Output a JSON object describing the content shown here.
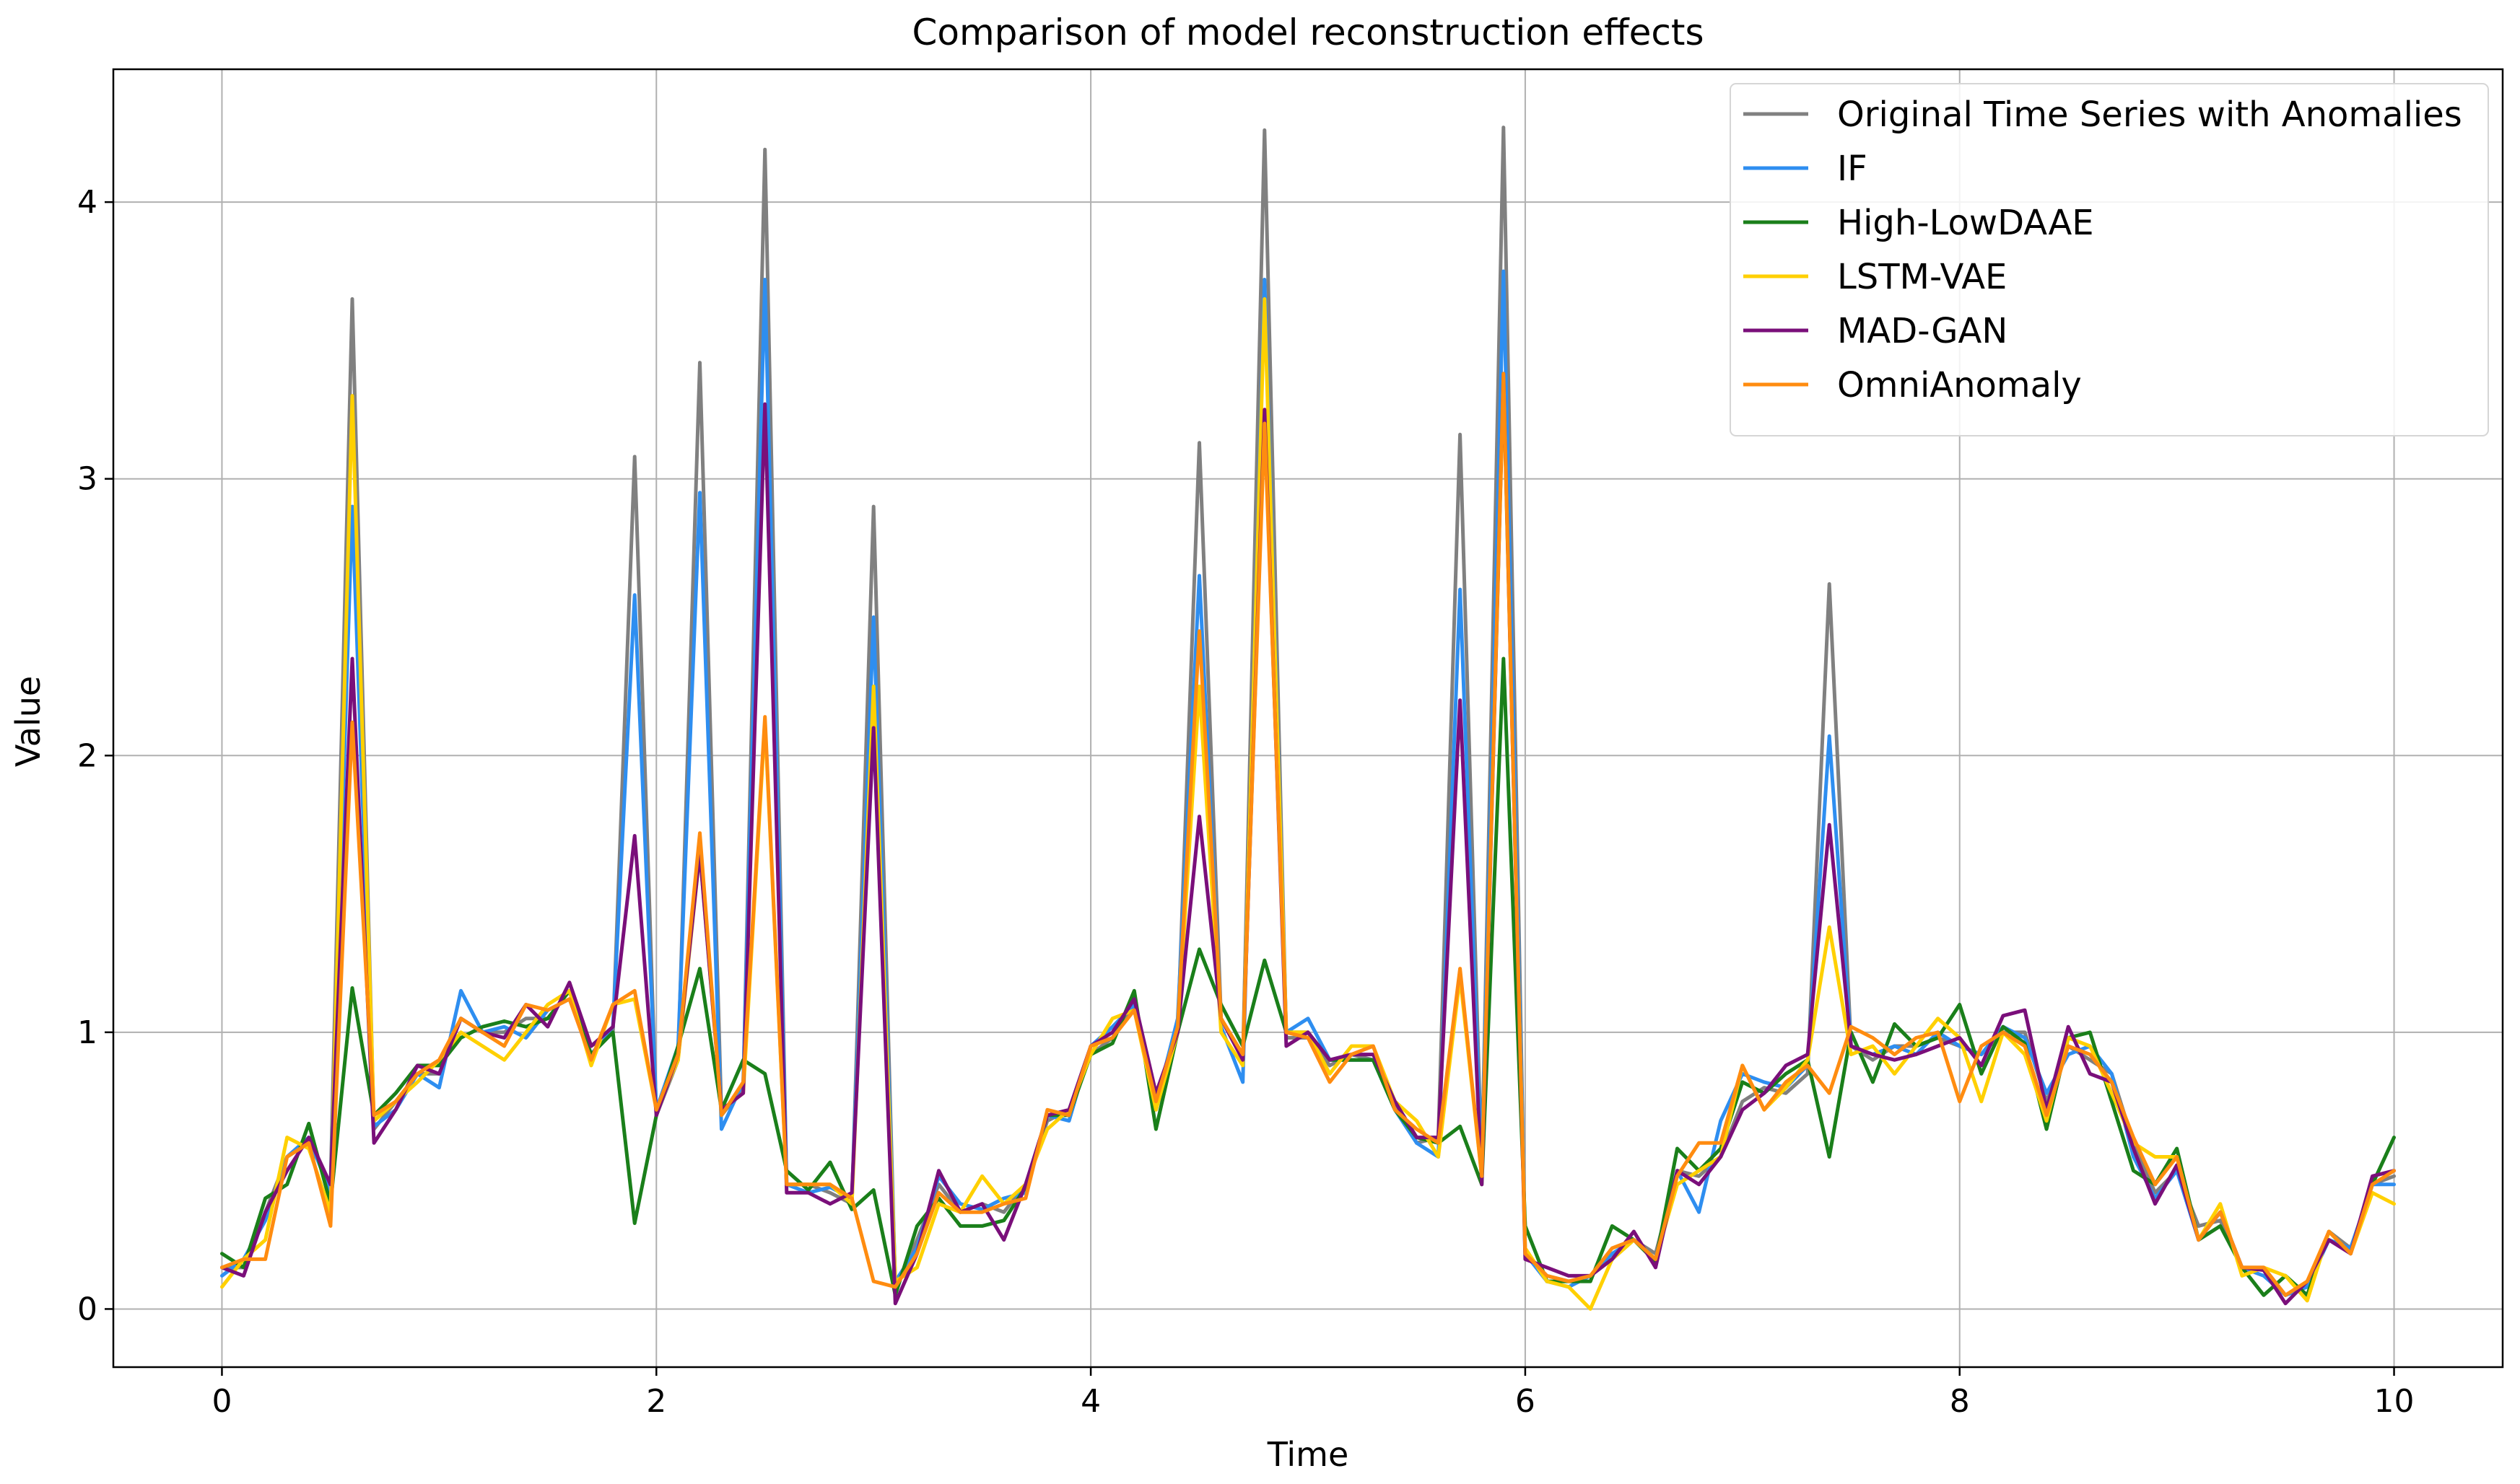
{
  "chart_data": {
    "type": "line",
    "title": "Comparison of model reconstruction effects",
    "xlabel": "Time",
    "ylabel": "Value",
    "xlim": [
      -0.5,
      10.5
    ],
    "ylim": [
      -0.21,
      4.48
    ],
    "xticks": [
      0,
      2,
      4,
      6,
      8,
      10
    ],
    "yticks": [
      0,
      1,
      2,
      3,
      4
    ],
    "grid": true,
    "legend_position": "top-right",
    "series": [
      {
        "name": "Original Time Series with Anomalies",
        "color": "#808080",
        "x": [
          0,
          0.1,
          0.2,
          0.3,
          0.4,
          0.5,
          0.6,
          0.7,
          0.8,
          0.9,
          1.0,
          1.1,
          1.2,
          1.3,
          1.4,
          1.5,
          1.6,
          1.7,
          1.8,
          1.9,
          2.0,
          2.1,
          2.2,
          2.3,
          2.4,
          2.5,
          2.6,
          2.7,
          2.8,
          2.9,
          3.0,
          3.1,
          3.2,
          3.3,
          3.4,
          3.5,
          3.6,
          3.7,
          3.8,
          3.9,
          4.0,
          4.1,
          4.2,
          4.3,
          4.4,
          4.5,
          4.6,
          4.7,
          4.8,
          4.9,
          5.0,
          5.1,
          5.2,
          5.3,
          5.4,
          5.5,
          5.6,
          5.7,
          5.8,
          5.9,
          6.0,
          6.1,
          6.2,
          6.3,
          6.4,
          6.5,
          6.6,
          6.7,
          6.8,
          6.9,
          7.0,
          7.1,
          7.2,
          7.3,
          7.4,
          7.5,
          7.6,
          7.7,
          7.8,
          7.9,
          8.0,
          8.1,
          8.2,
          8.3,
          8.4,
          8.5,
          8.6,
          8.7,
          8.8,
          8.9,
          9.0,
          9.1,
          9.2,
          9.3,
          9.4,
          9.5,
          9.6,
          9.7,
          9.8,
          9.9,
          10.0
        ],
        "y": [
          0.15,
          0.15,
          0.35,
          0.55,
          0.6,
          0.45,
          3.65,
          0.65,
          0.75,
          0.85,
          0.85,
          1.05,
          1.0,
          1.0,
          1.05,
          1.05,
          1.15,
          0.95,
          1.0,
          3.08,
          0.7,
          0.9,
          3.42,
          0.7,
          0.8,
          4.19,
          0.45,
          0.45,
          0.42,
          0.38,
          2.9,
          0.08,
          0.25,
          0.45,
          0.35,
          0.38,
          0.35,
          0.45,
          0.68,
          0.72,
          0.92,
          0.98,
          1.1,
          0.72,
          1.0,
          3.13,
          1.05,
          0.9,
          4.26,
          0.98,
          0.98,
          0.88,
          0.92,
          0.9,
          0.75,
          0.6,
          0.62,
          3.16,
          0.5,
          4.27,
          0.2,
          0.12,
          0.1,
          0.12,
          0.18,
          0.25,
          0.2,
          0.5,
          0.48,
          0.55,
          0.75,
          0.8,
          0.78,
          0.85,
          2.62,
          0.95,
          0.9,
          0.95,
          0.95,
          0.98,
          0.95,
          0.92,
          1.0,
          1.0,
          0.75,
          0.95,
          0.9,
          0.85,
          0.6,
          0.42,
          0.5,
          0.3,
          0.32,
          0.15,
          0.15,
          0.05,
          0.08,
          0.28,
          0.22,
          0.45,
          0.48
        ]
      },
      {
        "name": "IF",
        "color": "#2e8ef0",
        "x": [
          0,
          0.1,
          0.2,
          0.3,
          0.4,
          0.5,
          0.6,
          0.7,
          0.8,
          0.9,
          1.0,
          1.1,
          1.2,
          1.3,
          1.4,
          1.5,
          1.6,
          1.7,
          1.8,
          1.9,
          2.0,
          2.1,
          2.2,
          2.3,
          2.4,
          2.5,
          2.6,
          2.7,
          2.8,
          2.9,
          3.0,
          3.1,
          3.2,
          3.3,
          3.4,
          3.5,
          3.6,
          3.7,
          3.8,
          3.9,
          4.0,
          4.1,
          4.2,
          4.3,
          4.4,
          4.5,
          4.6,
          4.7,
          4.8,
          4.9,
          5.0,
          5.1,
          5.2,
          5.3,
          5.4,
          5.5,
          5.6,
          5.7,
          5.8,
          5.9,
          6.0,
          6.1,
          6.2,
          6.3,
          6.4,
          6.5,
          6.6,
          6.7,
          6.8,
          6.9,
          7.0,
          7.1,
          7.2,
          7.3,
          7.4,
          7.5,
          7.6,
          7.7,
          7.8,
          7.9,
          8.0,
          8.1,
          8.2,
          8.3,
          8.4,
          8.5,
          8.6,
          8.7,
          8.8,
          8.9,
          9.0,
          9.1,
          9.2,
          9.3,
          9.4,
          9.5,
          9.6,
          9.7,
          9.8,
          9.9,
          10.0
        ],
        "y": [
          0.12,
          0.18,
          0.32,
          0.55,
          0.62,
          0.42,
          2.9,
          0.66,
          0.72,
          0.85,
          0.8,
          1.15,
          1.0,
          1.02,
          0.98,
          1.08,
          1.12,
          0.92,
          1.02,
          2.58,
          0.72,
          0.95,
          2.95,
          0.65,
          0.82,
          3.72,
          0.45,
          0.42,
          0.44,
          0.4,
          2.5,
          0.1,
          0.22,
          0.48,
          0.38,
          0.36,
          0.4,
          0.42,
          0.7,
          0.68,
          0.95,
          1.02,
          1.1,
          0.74,
          1.05,
          2.65,
          1.02,
          0.82,
          3.72,
          1.0,
          1.05,
          0.9,
          0.9,
          0.9,
          0.72,
          0.6,
          0.55,
          2.6,
          0.5,
          3.75,
          0.2,
          0.1,
          0.08,
          0.12,
          0.2,
          0.25,
          0.18,
          0.5,
          0.35,
          0.68,
          0.85,
          0.82,
          0.8,
          0.88,
          2.07,
          0.95,
          0.92,
          0.95,
          0.92,
          1.0,
          0.95,
          0.92,
          1.02,
          0.98,
          0.78,
          0.92,
          0.95,
          0.85,
          0.55,
          0.4,
          0.5,
          0.25,
          0.35,
          0.15,
          0.12,
          0.05,
          0.08,
          0.25,
          0.22,
          0.45,
          0.45
        ]
      },
      {
        "name": "High-LowDAAE",
        "color": "#1a7f1a",
        "x": [
          0,
          0.1,
          0.2,
          0.3,
          0.4,
          0.5,
          0.6,
          0.7,
          0.8,
          0.9,
          1.0,
          1.1,
          1.2,
          1.3,
          1.4,
          1.5,
          1.6,
          1.7,
          1.8,
          1.9,
          2.0,
          2.1,
          2.2,
          2.3,
          2.4,
          2.5,
          2.6,
          2.7,
          2.8,
          2.9,
          3.0,
          3.1,
          3.2,
          3.3,
          3.4,
          3.5,
          3.6,
          3.7,
          3.8,
          3.9,
          4.0,
          4.1,
          4.2,
          4.3,
          4.4,
          4.5,
          4.6,
          4.7,
          4.8,
          4.9,
          5.0,
          5.1,
          5.2,
          5.3,
          5.4,
          5.5,
          5.6,
          5.7,
          5.8,
          5.9,
          6.0,
          6.1,
          6.2,
          6.3,
          6.4,
          6.5,
          6.6,
          6.7,
          6.8,
          6.9,
          7.0,
          7.1,
          7.2,
          7.3,
          7.4,
          7.5,
          7.6,
          7.7,
          7.8,
          7.9,
          8.0,
          8.1,
          8.2,
          8.3,
          8.4,
          8.5,
          8.6,
          8.7,
          8.8,
          8.9,
          9.0,
          9.1,
          9.2,
          9.3,
          9.4,
          9.5,
          9.6,
          9.7,
          9.8,
          9.9,
          10.0
        ],
        "y": [
          0.2,
          0.15,
          0.4,
          0.45,
          0.67,
          0.38,
          1.16,
          0.7,
          0.78,
          0.88,
          0.88,
          0.98,
          1.02,
          1.04,
          1.02,
          1.05,
          1.15,
          0.92,
          1.0,
          0.31,
          0.7,
          0.95,
          1.23,
          0.72,
          0.9,
          0.85,
          0.5,
          0.43,
          0.53,
          0.36,
          0.43,
          0.05,
          0.3,
          0.4,
          0.3,
          0.3,
          0.32,
          0.44,
          0.7,
          0.7,
          0.92,
          0.96,
          1.15,
          0.65,
          1.0,
          1.3,
          1.1,
          0.95,
          1.26,
          1.0,
          1.0,
          0.9,
          0.9,
          0.9,
          0.72,
          0.62,
          0.6,
          0.66,
          0.45,
          2.35,
          0.3,
          0.1,
          0.1,
          0.1,
          0.3,
          0.25,
          0.17,
          0.58,
          0.5,
          0.58,
          0.82,
          0.78,
          0.85,
          0.9,
          0.55,
          1.0,
          0.82,
          1.03,
          0.95,
          0.98,
          1.1,
          0.85,
          1.02,
          0.96,
          0.65,
          0.98,
          1.0,
          0.75,
          0.5,
          0.45,
          0.58,
          0.25,
          0.3,
          0.15,
          0.05,
          0.12,
          0.05,
          0.28,
          0.2,
          0.45,
          0.62
        ]
      },
      {
        "name": "LSTM-VAE",
        "color": "#ffd000",
        "x": [
          0,
          0.1,
          0.2,
          0.3,
          0.4,
          0.5,
          0.6,
          0.7,
          0.8,
          0.9,
          1.0,
          1.1,
          1.2,
          1.3,
          1.4,
          1.5,
          1.6,
          1.7,
          1.8,
          1.9,
          2.0,
          2.1,
          2.2,
          2.3,
          2.4,
          2.5,
          2.6,
          2.7,
          2.8,
          2.9,
          3.0,
          3.1,
          3.2,
          3.3,
          3.4,
          3.5,
          3.6,
          3.7,
          3.8,
          3.9,
          4.0,
          4.1,
          4.2,
          4.3,
          4.4,
          4.5,
          4.6,
          4.7,
          4.8,
          4.9,
          5.0,
          5.1,
          5.2,
          5.3,
          5.4,
          5.5,
          5.6,
          5.7,
          5.8,
          5.9,
          6.0,
          6.1,
          6.2,
          6.3,
          6.4,
          6.5,
          6.6,
          6.7,
          6.8,
          6.9,
          7.0,
          7.1,
          7.2,
          7.3,
          7.4,
          7.5,
          7.6,
          7.7,
          7.8,
          7.9,
          8.0,
          8.1,
          8.2,
          8.3,
          8.4,
          8.5,
          8.6,
          8.7,
          8.8,
          8.9,
          9.0,
          9.1,
          9.2,
          9.3,
          9.4,
          9.5,
          9.6,
          9.7,
          9.8,
          9.9,
          10.0
        ],
        "y": [
          0.08,
          0.18,
          0.25,
          0.62,
          0.58,
          0.35,
          3.3,
          0.68,
          0.75,
          0.82,
          0.9,
          1.0,
          0.95,
          0.9,
          1.0,
          1.1,
          1.15,
          0.88,
          1.1,
          1.12,
          0.72,
          0.9,
          1.65,
          0.72,
          0.78,
          2.12,
          0.45,
          0.45,
          0.45,
          0.38,
          2.25,
          0.1,
          0.15,
          0.38,
          0.35,
          0.48,
          0.38,
          0.45,
          0.65,
          0.72,
          0.92,
          1.05,
          1.08,
          0.72,
          1.0,
          2.25,
          1.0,
          0.88,
          3.65,
          1.0,
          1.0,
          0.85,
          0.95,
          0.95,
          0.75,
          0.68,
          0.55,
          1.2,
          0.48,
          3.35,
          0.22,
          0.1,
          0.08,
          0.0,
          0.18,
          0.25,
          0.18,
          0.45,
          0.5,
          0.55,
          0.88,
          0.72,
          0.8,
          0.9,
          1.38,
          0.92,
          0.95,
          0.85,
          0.95,
          1.05,
          0.98,
          0.75,
          1.0,
          0.92,
          0.68,
          0.98,
          0.95,
          0.78,
          0.6,
          0.55,
          0.55,
          0.25,
          0.38,
          0.12,
          0.15,
          0.12,
          0.03,
          0.28,
          0.2,
          0.42,
          0.38
        ]
      },
      {
        "name": "MAD-GAN",
        "color": "#7a0f7a",
        "x": [
          0,
          0.1,
          0.2,
          0.3,
          0.4,
          0.5,
          0.6,
          0.7,
          0.8,
          0.9,
          1.0,
          1.1,
          1.2,
          1.3,
          1.4,
          1.5,
          1.6,
          1.7,
          1.8,
          1.9,
          2.0,
          2.1,
          2.2,
          2.3,
          2.4,
          2.5,
          2.6,
          2.7,
          2.8,
          2.9,
          3.0,
          3.1,
          3.2,
          3.3,
          3.4,
          3.5,
          3.6,
          3.7,
          3.8,
          3.9,
          4.0,
          4.1,
          4.2,
          4.3,
          4.4,
          4.5,
          4.6,
          4.7,
          4.8,
          4.9,
          5.0,
          5.1,
          5.2,
          5.3,
          5.4,
          5.5,
          5.6,
          5.7,
          5.8,
          5.9,
          6.0,
          6.1,
          6.2,
          6.3,
          6.4,
          6.5,
          6.6,
          6.7,
          6.8,
          6.9,
          7.0,
          7.1,
          7.2,
          7.3,
          7.4,
          7.5,
          7.6,
          7.7,
          7.8,
          7.9,
          8.0,
          8.1,
          8.2,
          8.3,
          8.4,
          8.5,
          8.6,
          8.7,
          8.8,
          8.9,
          9.0,
          9.1,
          9.2,
          9.3,
          9.4,
          9.5,
          9.6,
          9.7,
          9.8,
          9.9,
          10.0
        ],
        "y": [
          0.15,
          0.12,
          0.35,
          0.5,
          0.62,
          0.45,
          2.35,
          0.6,
          0.72,
          0.88,
          0.85,
          1.05,
          1.0,
          0.98,
          1.1,
          1.02,
          1.18,
          0.95,
          1.02,
          1.71,
          0.7,
          0.92,
          1.65,
          0.72,
          0.78,
          3.27,
          0.42,
          0.42,
          0.38,
          0.42,
          2.1,
          0.02,
          0.2,
          0.5,
          0.35,
          0.38,
          0.25,
          0.45,
          0.7,
          0.72,
          0.95,
          1.0,
          1.12,
          0.78,
          1.0,
          1.78,
          1.05,
          0.9,
          3.25,
          0.95,
          1.0,
          0.9,
          0.92,
          0.92,
          0.75,
          0.62,
          0.62,
          2.2,
          0.45,
          3.38,
          0.18,
          0.15,
          0.12,
          0.12,
          0.18,
          0.28,
          0.15,
          0.5,
          0.45,
          0.55,
          0.72,
          0.78,
          0.88,
          0.92,
          1.75,
          0.95,
          0.92,
          0.9,
          0.92,
          0.95,
          0.98,
          0.88,
          1.06,
          1.08,
          0.72,
          1.02,
          0.85,
          0.82,
          0.58,
          0.38,
          0.52,
          0.25,
          0.35,
          0.15,
          0.14,
          0.02,
          0.1,
          0.25,
          0.2,
          0.48,
          0.5
        ]
      },
      {
        "name": "OmniAnomaly",
        "color": "#ff8c10",
        "x": [
          0,
          0.1,
          0.2,
          0.3,
          0.4,
          0.5,
          0.6,
          0.7,
          0.8,
          0.9,
          1.0,
          1.1,
          1.2,
          1.3,
          1.4,
          1.5,
          1.6,
          1.7,
          1.8,
          1.9,
          2.0,
          2.1,
          2.2,
          2.3,
          2.4,
          2.5,
          2.6,
          2.7,
          2.8,
          2.9,
          3.0,
          3.1,
          3.2,
          3.3,
          3.4,
          3.5,
          3.6,
          3.7,
          3.8,
          3.9,
          4.0,
          4.1,
          4.2,
          4.3,
          4.4,
          4.5,
          4.6,
          4.7,
          4.8,
          4.9,
          5.0,
          5.1,
          5.2,
          5.3,
          5.4,
          5.5,
          5.6,
          5.7,
          5.8,
          5.9,
          6.0,
          6.1,
          6.2,
          6.3,
          6.4,
          6.5,
          6.6,
          6.7,
          6.8,
          6.9,
          7.0,
          7.1,
          7.2,
          7.3,
          7.4,
          7.5,
          7.6,
          7.7,
          7.8,
          7.9,
          8.0,
          8.1,
          8.2,
          8.3,
          8.4,
          8.5,
          8.6,
          8.7,
          8.8,
          8.9,
          9.0,
          9.1,
          9.2,
          9.3,
          9.4,
          9.5,
          9.6,
          9.7,
          9.8,
          9.9,
          10.0
        ],
        "y": [
          0.15,
          0.18,
          0.18,
          0.55,
          0.6,
          0.3,
          2.12,
          0.7,
          0.75,
          0.85,
          0.9,
          1.05,
          1.0,
          0.95,
          1.1,
          1.08,
          1.12,
          0.9,
          1.1,
          1.15,
          0.72,
          0.92,
          1.72,
          0.7,
          0.82,
          2.14,
          0.45,
          0.45,
          0.45,
          0.4,
          0.1,
          0.08,
          0.2,
          0.42,
          0.35,
          0.35,
          0.38,
          0.4,
          0.72,
          0.7,
          0.95,
          0.98,
          1.08,
          0.75,
          1.02,
          2.45,
          1.05,
          0.92,
          3.2,
          1.0,
          0.98,
          0.82,
          0.92,
          0.95,
          0.72,
          0.65,
          0.6,
          1.23,
          0.48,
          3.38,
          0.2,
          0.12,
          0.1,
          0.12,
          0.22,
          0.25,
          0.18,
          0.48,
          0.6,
          0.6,
          0.88,
          0.72,
          0.82,
          0.88,
          0.78,
          1.02,
          0.98,
          0.92,
          0.98,
          1.0,
          0.75,
          0.95,
          1.0,
          0.95,
          0.7,
          0.95,
          0.92,
          0.82,
          0.62,
          0.45,
          0.55,
          0.25,
          0.35,
          0.15,
          0.15,
          0.05,
          0.1,
          0.28,
          0.2,
          0.45,
          0.5
        ]
      }
    ]
  }
}
